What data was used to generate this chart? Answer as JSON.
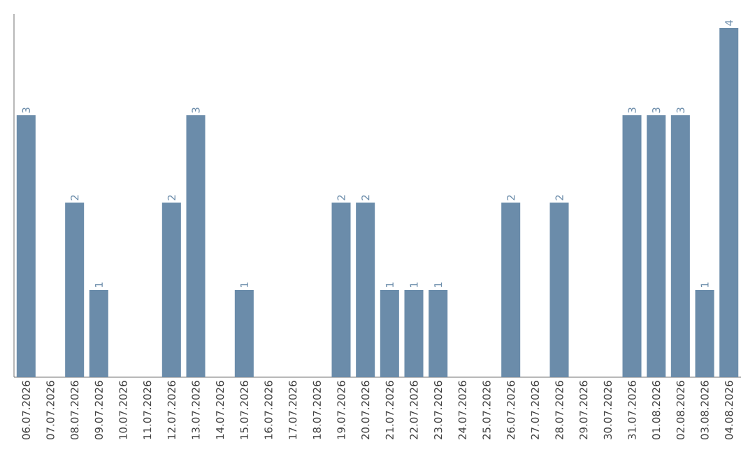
{
  "chart_data": {
    "type": "bar",
    "categories": [
      "06.07.2026",
      "07.07.2026",
      "08.07.2026",
      "09.07.2026",
      "10.07.2026",
      "11.07.2026",
      "12.07.2026",
      "13.07.2026",
      "14.07.2026",
      "15.07.2026",
      "16.07.2026",
      "17.07.2026",
      "18.07.2026",
      "19.07.2026",
      "20.07.2026",
      "21.07.2026",
      "22.07.2026",
      "23.07.2026",
      "24.07.2026",
      "25.07.2026",
      "26.07.2026",
      "27.07.2026",
      "28.07.2026",
      "29.07.2026",
      "30.07.2026",
      "31.07.2026",
      "01.08.2026",
      "02.08.2026",
      "03.08.2026",
      "04.08.2026"
    ],
    "values": [
      3,
      0,
      2,
      1,
      0,
      0,
      2,
      3,
      0,
      1,
      0,
      0,
      0,
      2,
      2,
      1,
      1,
      1,
      0,
      0,
      2,
      0,
      2,
      0,
      0,
      3,
      3,
      3,
      1,
      4
    ],
    "value_labels": [
      "3",
      null,
      "2",
      "1",
      null,
      null,
      "2",
      "3",
      null,
      "1",
      null,
      null,
      null,
      "2",
      "2",
      "1",
      "1",
      "1",
      null,
      null,
      "2",
      null,
      "2",
      null,
      null,
      "3",
      "3",
      "3",
      "1",
      "4"
    ],
    "color": "#6b8caa",
    "tick_labels": "x"
  }
}
